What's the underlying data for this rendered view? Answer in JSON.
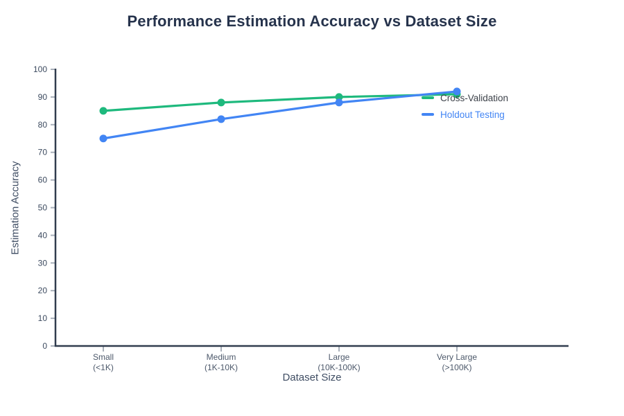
{
  "chart_data": {
    "type": "line",
    "title": "Performance Estimation Accuracy vs Dataset Size",
    "xlabel": "Dataset Size",
    "ylabel": "Estimation Accuracy",
    "categories": [
      [
        "Small",
        "(<1K)"
      ],
      [
        "Medium",
        "(1K-10K)"
      ],
      [
        "Large",
        "(10K-100K)"
      ],
      [
        "Very Large",
        "(>100K)"
      ]
    ],
    "series": [
      {
        "name": "Cross-Validation",
        "color": "#1eb97d",
        "label_color": "#3c4149",
        "values": [
          85,
          88,
          90,
          91
        ]
      },
      {
        "name": "Holdout Testing",
        "color": "#4285f4",
        "label_color": "#4285f4",
        "values": [
          75,
          82,
          88,
          92
        ]
      }
    ],
    "ylim": [
      0,
      100
    ],
    "ytick_step": 10,
    "grid": false,
    "legend_position": "inside-top-right",
    "marker": "circle",
    "background_color": "#ffffff",
    "axis_color": "#303c4e",
    "tick_color": "#a9b0ba",
    "y_tick_label_color": "#3c4a5f",
    "x_tick_label_color": "#4c586a"
  }
}
